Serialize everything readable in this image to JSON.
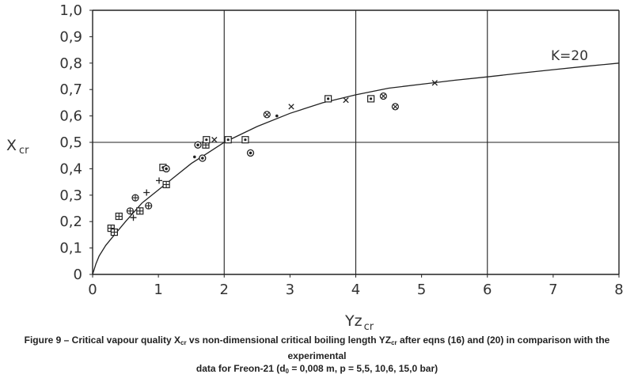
{
  "chart_data": {
    "type": "scatter",
    "title": "",
    "xlabel": "Yz",
    "xlabel_sub": "cr",
    "ylabel": "X",
    "ylabel_sub": "cr",
    "xlim": [
      0,
      8
    ],
    "ylim": [
      0,
      1
    ],
    "x_ticks": [
      "0",
      "1",
      "2",
      "3",
      "4",
      "5",
      "6",
      "7",
      "8"
    ],
    "y_ticks": [
      "0",
      "0,1",
      "0,2",
      "0,3",
      "0,4",
      "0,5",
      "0,6",
      "0,7",
      "0,8",
      "0,9",
      "1,0"
    ],
    "grid": {
      "x": [
        2,
        4,
        6
      ],
      "y": [
        0.5
      ]
    },
    "curve": {
      "label": "K=20",
      "x": [
        0,
        0.05,
        0.1,
        0.2,
        0.3,
        0.5,
        0.75,
        1,
        1.25,
        1.5,
        1.75,
        2,
        2.5,
        3,
        3.5,
        4,
        4.5,
        5,
        5.5,
        6,
        6.5,
        7,
        7.5,
        8
      ],
      "y": [
        0,
        0.04,
        0.07,
        0.11,
        0.14,
        0.2,
        0.27,
        0.32,
        0.37,
        0.42,
        0.46,
        0.5,
        0.56,
        0.61,
        0.65,
        0.68,
        0.705,
        0.72,
        0.735,
        0.748,
        0.762,
        0.775,
        0.788,
        0.8
      ]
    },
    "series": [
      {
        "marker": "box-plus",
        "points": [
          [
            0.28,
            0.175
          ],
          [
            0.33,
            0.16
          ],
          [
            0.4,
            0.22
          ],
          [
            0.72,
            0.24
          ],
          [
            1.12,
            0.34
          ],
          [
            1.72,
            0.49
          ]
        ]
      },
      {
        "marker": "box-dot",
        "points": [
          [
            1.07,
            0.405
          ],
          [
            1.73,
            0.51
          ],
          [
            2.06,
            0.51
          ],
          [
            2.32,
            0.51
          ],
          [
            3.58,
            0.665
          ],
          [
            4.23,
            0.665
          ]
        ]
      },
      {
        "marker": "circle-plus",
        "points": [
          [
            0.57,
            0.24
          ],
          [
            0.65,
            0.29
          ],
          [
            0.85,
            0.26
          ]
        ]
      },
      {
        "marker": "circle-dot",
        "points": [
          [
            1.12,
            0.4
          ],
          [
            1.6,
            0.49
          ],
          [
            1.67,
            0.44
          ],
          [
            2.4,
            0.46
          ]
        ]
      },
      {
        "marker": "circle-x",
        "points": [
          [
            2.65,
            0.605
          ],
          [
            4.42,
            0.675
          ],
          [
            4.6,
            0.635
          ]
        ]
      },
      {
        "marker": "plus",
        "points": [
          [
            0.62,
            0.215
          ],
          [
            0.82,
            0.31
          ],
          [
            1.01,
            0.355
          ]
        ]
      },
      {
        "marker": "x",
        "points": [
          [
            1.85,
            0.51
          ],
          [
            3.02,
            0.635
          ],
          [
            3.85,
            0.66
          ],
          [
            5.2,
            0.725
          ]
        ]
      },
      {
        "marker": "dot",
        "points": [
          [
            1.55,
            0.445
          ],
          [
            2.8,
            0.6
          ]
        ]
      }
    ]
  },
  "caption": {
    "line1_a": "Figure 9 – Critical vapour quality X",
    "line1_sub1": "cr",
    "line1_b": " vs non-dimensional critical boiling length YZ",
    "line1_sub2": "cr",
    "line1_c": " after eqns (16) and (20) in comparison with the experimental",
    "line2_a": "data for Freon-21 (d",
    "line2_sub": "0",
    "line2_b": " = 0,008 m, p = 5,5, 10,6, 15,0 bar)"
  }
}
